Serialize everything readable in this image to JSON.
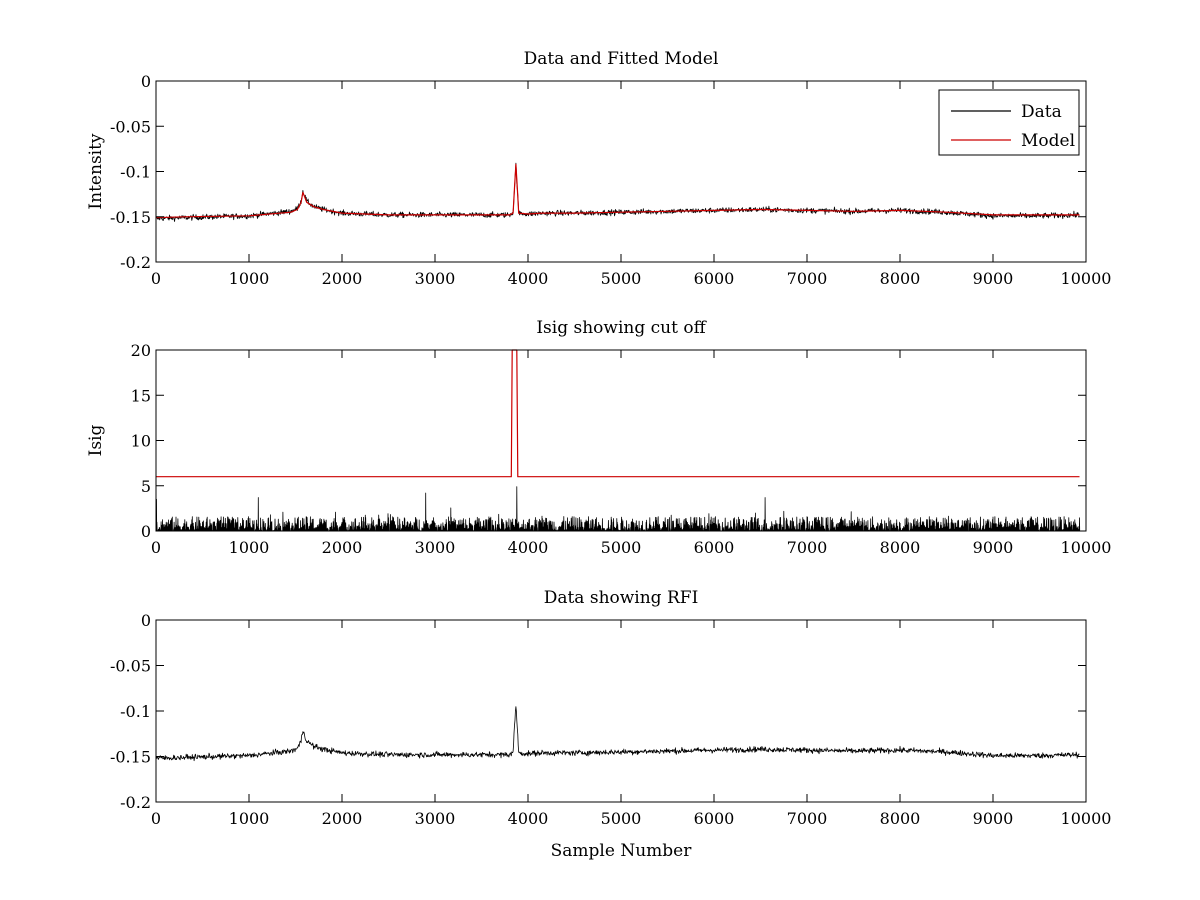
{
  "chart_data": [
    {
      "type": "line",
      "title": "Data and Fitted Model",
      "xlabel": "",
      "ylabel": "Intensity",
      "xlim": [
        0,
        10000
      ],
      "ylim": [
        -0.2,
        0
      ],
      "xticks": [
        "0",
        "1000",
        "2000",
        "3000",
        "4000",
        "5000",
        "6000",
        "7000",
        "8000",
        "9000",
        "10000"
      ],
      "yticks": [
        "0",
        "-0.05",
        "-0.1",
        "-0.15",
        "-0.2"
      ],
      "legend": {
        "position": "top-right",
        "entries": [
          "Data",
          "Model"
        ]
      },
      "series": [
        {
          "name": "Data",
          "color": "#000000",
          "kind": "noisy",
          "x": [
            0,
            300,
            1000,
            1450,
            1520,
            1560,
            1580,
            1620,
            1700,
            1800,
            2000,
            2500,
            3000,
            3500,
            3800,
            3840,
            3855,
            3870,
            3885,
            3900,
            4000,
            4150,
            4500,
            5000,
            5500,
            6000,
            6500,
            7000,
            7500,
            8000,
            8500,
            9000,
            9500,
            9930
          ],
          "values": [
            -0.152,
            -0.151,
            -0.149,
            -0.144,
            -0.141,
            -0.133,
            -0.121,
            -0.133,
            -0.139,
            -0.142,
            -0.146,
            -0.148,
            -0.148,
            -0.148,
            -0.148,
            -0.145,
            -0.118,
            -0.093,
            -0.118,
            -0.146,
            -0.147,
            -0.146,
            -0.146,
            -0.145,
            -0.144,
            -0.143,
            -0.142,
            -0.143,
            -0.144,
            -0.143,
            -0.145,
            -0.149,
            -0.149,
            -0.148
          ],
          "noise": 0.003
        },
        {
          "name": "Model",
          "color": "#cc0000",
          "kind": "smooth",
          "x": [
            0,
            300,
            1000,
            1450,
            1520,
            1560,
            1580,
            1620,
            1700,
            1800,
            2000,
            2500,
            3000,
            3500,
            3800,
            3840,
            3855,
            3870,
            3885,
            3900,
            4000,
            4150,
            4500,
            5000,
            5500,
            6000,
            6500,
            7000,
            7500,
            8000,
            8500,
            9000,
            9500,
            9930
          ],
          "values": [
            -0.151,
            -0.15,
            -0.149,
            -0.145,
            -0.142,
            -0.134,
            -0.123,
            -0.134,
            -0.139,
            -0.142,
            -0.146,
            -0.148,
            -0.148,
            -0.148,
            -0.148,
            -0.146,
            -0.118,
            -0.092,
            -0.118,
            -0.146,
            -0.147,
            -0.146,
            -0.146,
            -0.145,
            -0.144,
            -0.143,
            -0.142,
            -0.143,
            -0.144,
            -0.143,
            -0.145,
            -0.148,
            -0.148,
            -0.148
          ]
        }
      ]
    },
    {
      "type": "line",
      "title": "Isig showing cut off",
      "xlabel": "",
      "ylabel": "Isig",
      "xlim": [
        0,
        10000
      ],
      "ylim": [
        0,
        20
      ],
      "xticks": [
        "0",
        "1000",
        "2000",
        "3000",
        "4000",
        "5000",
        "6000",
        "7000",
        "8000",
        "9000",
        "10000"
      ],
      "yticks": [
        "20",
        "15",
        "10",
        "5",
        "0"
      ],
      "series": [
        {
          "name": "Isig",
          "color": "#000000",
          "kind": "spiky",
          "x": [
            0,
            9930
          ],
          "values": [
            0,
            0
          ],
          "typical_max": 1.6,
          "peaks": [
            [
              5,
              3.5
            ],
            [
              1100,
              3.7
            ],
            [
              2900,
              4.2
            ],
            [
              3880,
              4.9
            ],
            [
              6550,
              3.7
            ]
          ]
        },
        {
          "name": "cut off",
          "color": "#cc0000",
          "kind": "step",
          "x": [
            0,
            3820,
            3830,
            3880,
            3890,
            9930
          ],
          "values": [
            6,
            6,
            20,
            20,
            6,
            6
          ]
        }
      ]
    },
    {
      "type": "line",
      "title": "Data showing RFI",
      "xlabel": "Sample Number",
      "ylabel": "",
      "xlim": [
        0,
        10000
      ],
      "ylim": [
        -0.2,
        0
      ],
      "xticks": [
        "0",
        "1000",
        "2000",
        "3000",
        "4000",
        "5000",
        "6000",
        "7000",
        "8000",
        "9000",
        "10000"
      ],
      "yticks": [
        "0",
        "-0.05",
        "-0.1",
        "-0.15",
        "-0.2"
      ],
      "series": [
        {
          "name": "Data",
          "color": "#000000",
          "kind": "noisy",
          "x": [
            0,
            300,
            1000,
            1450,
            1520,
            1560,
            1580,
            1620,
            1700,
            1800,
            2000,
            2500,
            3000,
            3500,
            3800,
            3840,
            3855,
            3870,
            3885,
            3900,
            4000,
            4150,
            4500,
            5000,
            5500,
            6000,
            6500,
            7000,
            7500,
            8000,
            8500,
            9000,
            9500,
            9930
          ],
          "values": [
            -0.152,
            -0.151,
            -0.149,
            -0.144,
            -0.141,
            -0.133,
            -0.121,
            -0.133,
            -0.139,
            -0.142,
            -0.146,
            -0.148,
            -0.148,
            -0.148,
            -0.148,
            -0.145,
            -0.118,
            -0.093,
            -0.118,
            -0.146,
            -0.147,
            -0.146,
            -0.146,
            -0.145,
            -0.144,
            -0.143,
            -0.142,
            -0.143,
            -0.144,
            -0.143,
            -0.145,
            -0.149,
            -0.149,
            -0.148
          ],
          "noise": 0.003
        }
      ]
    }
  ]
}
